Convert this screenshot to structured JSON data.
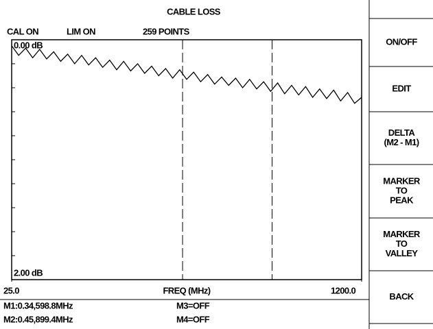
{
  "header": {
    "title": "CABLE LOSS",
    "status": [
      "CAL ON",
      "LIM ON",
      "259 POINTS"
    ]
  },
  "chart_data": {
    "type": "line",
    "xlabel": "FREQ (MHz)",
    "x": [
      25,
      48.5,
      72,
      95.5,
      119,
      142.5,
      166,
      189.5,
      213,
      236.5,
      260,
      283.5,
      307,
      330.5,
      354,
      377.5,
      401,
      424.5,
      448,
      471.5,
      495,
      518.5,
      542,
      565.5,
      589,
      612.5,
      636,
      659.5,
      683,
      706.5,
      730,
      753.5,
      777,
      800.5,
      824,
      847.5,
      871,
      894.5,
      918,
      941.5,
      965,
      988.5,
      1012,
      1035.5,
      1059,
      1082.5,
      1106,
      1129.5,
      1153,
      1176.5,
      1200
    ],
    "series": [
      {
        "color": "#000000",
        "values": [
          0.05,
          0.13,
          0.07,
          0.15,
          0.08,
          0.16,
          0.1,
          0.18,
          0.12,
          0.2,
          0.13,
          0.21,
          0.15,
          0.23,
          0.17,
          0.25,
          0.18,
          0.26,
          0.2,
          0.28,
          0.22,
          0.3,
          0.24,
          0.32,
          0.25,
          0.33,
          0.27,
          0.35,
          0.29,
          0.37,
          0.31,
          0.38,
          0.32,
          0.4,
          0.33,
          0.41,
          0.35,
          0.43,
          0.36,
          0.45,
          0.38,
          0.46,
          0.39,
          0.48,
          0.41,
          0.49,
          0.42,
          0.51,
          0.44,
          0.53,
          0.48
        ]
      }
    ],
    "xlim": [
      25,
      1200
    ],
    "xticks": [
      {
        "value": 25,
        "label": "25.0"
      },
      {
        "value": 1200,
        "label": "1200.0"
      }
    ],
    "ylim": [
      2,
      0
    ],
    "yticks": [
      {
        "value": 0,
        "label": "0.00 dB"
      },
      {
        "value": 2,
        "label": "2.00 dB"
      }
    ],
    "minor_yticks": [
      0.2,
      0.4,
      0.6,
      0.8,
      1.0,
      1.2,
      1.4,
      1.6,
      1.8
    ]
  },
  "markers": [
    {
      "label": "M1:0.34,598.8MHz",
      "x": 598.8,
      "y": 0.34
    },
    {
      "label": "M2:0.45,899.4MHz",
      "x": 899.4,
      "y": 0.45
    }
  ],
  "marker_status": [
    "M3=OFF",
    "M4=OFF"
  ],
  "softkeys": [
    [
      "ON/OFF"
    ],
    [
      "EDIT"
    ],
    [
      "DELTA",
      "(M2 - M1)"
    ],
    [
      "MARKER",
      "TO",
      "PEAK"
    ],
    [
      "MARKER",
      "TO",
      "VALLEY"
    ],
    [
      "BACK"
    ]
  ]
}
